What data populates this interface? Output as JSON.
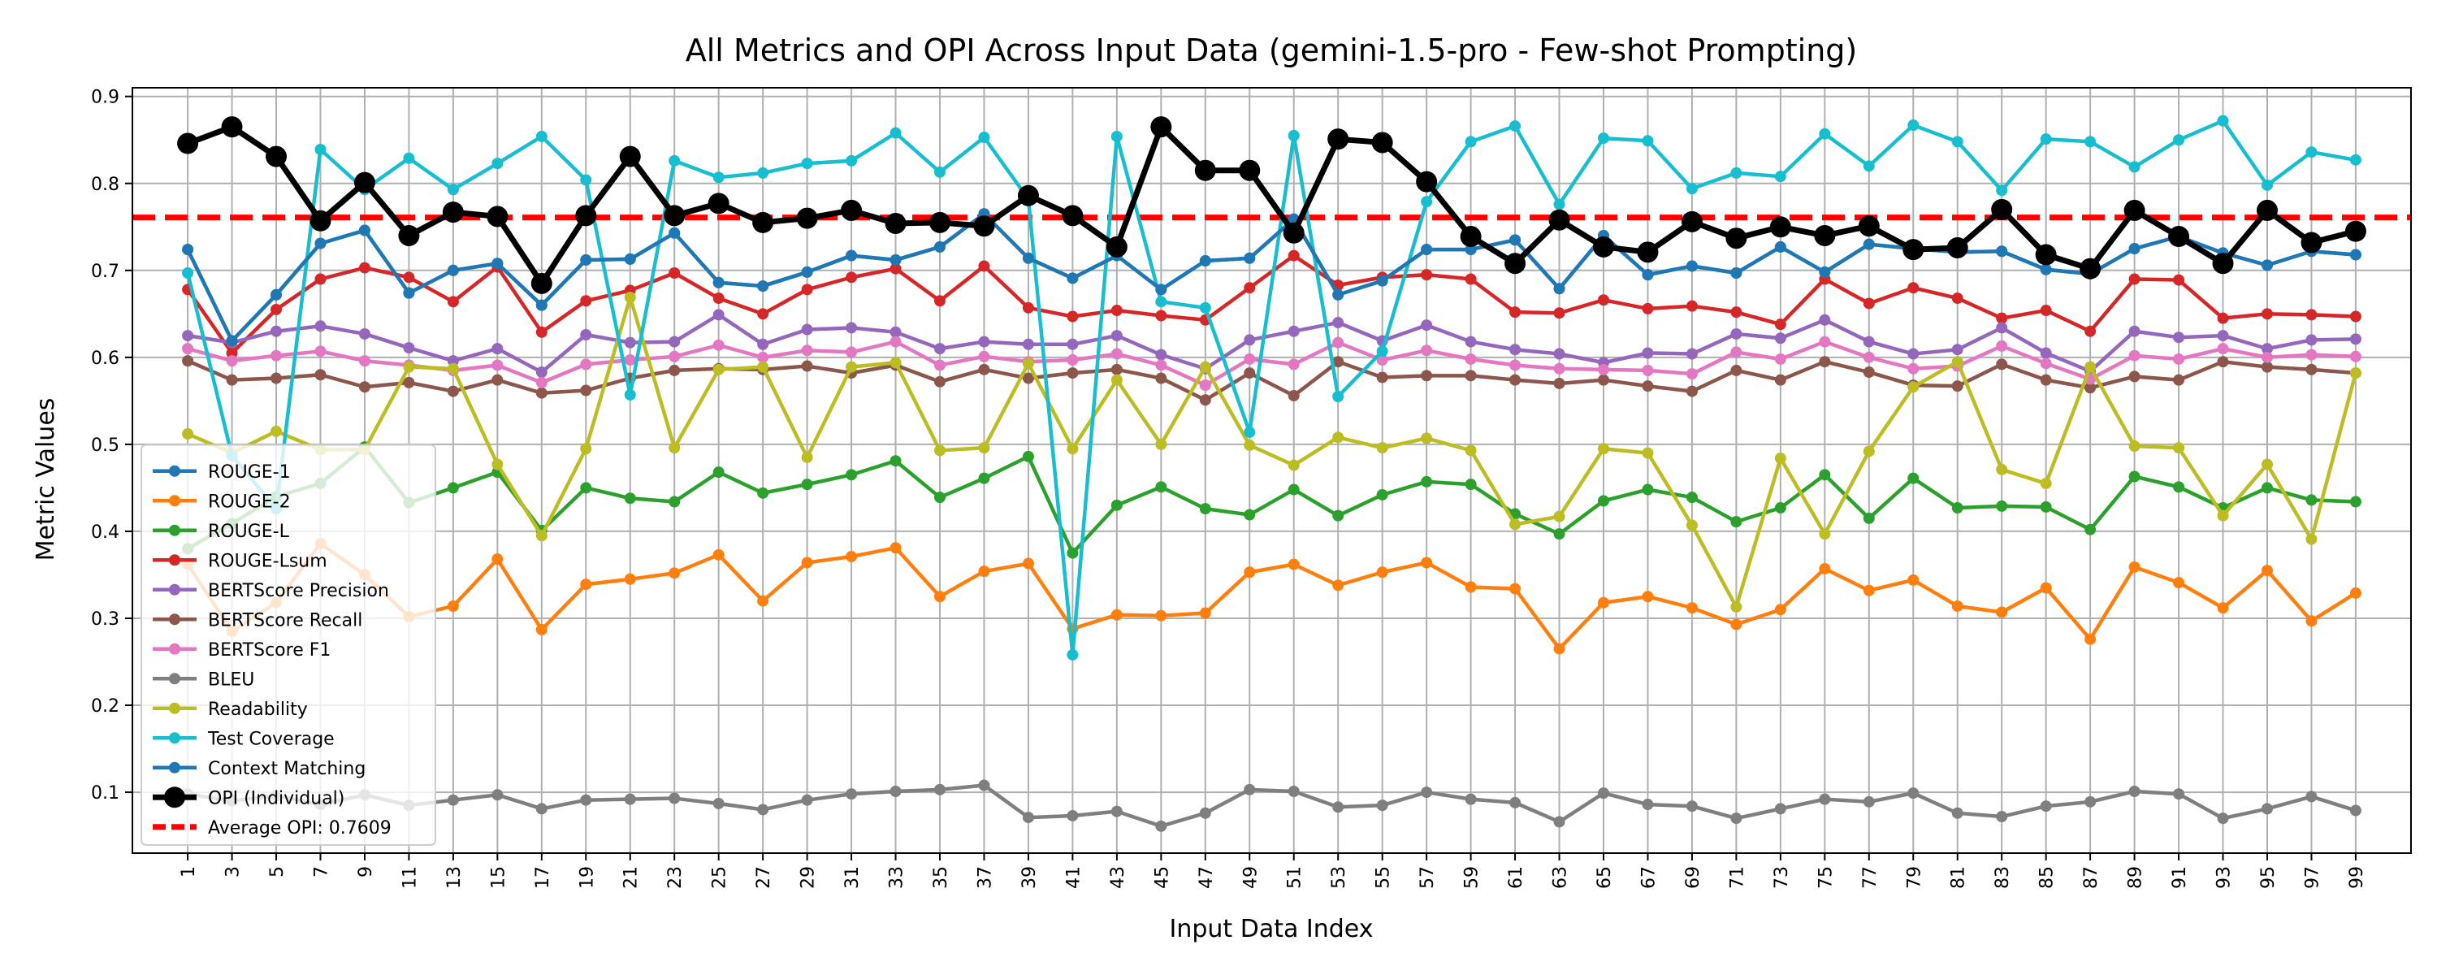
{
  "chart_data": {
    "type": "line",
    "title": "All Metrics and OPI Across Input Data (gemini-1.5-pro - Few-shot Prompting)",
    "xlabel": "Input Data Index",
    "ylabel": "Metric Values",
    "x": [
      1,
      3,
      5,
      7,
      9,
      11,
      13,
      15,
      17,
      19,
      21,
      23,
      25,
      27,
      29,
      31,
      33,
      35,
      37,
      39,
      41,
      43,
      45,
      47,
      49,
      51,
      53,
      55,
      57,
      59,
      61,
      63,
      65,
      67,
      69,
      71,
      73,
      75,
      77,
      79,
      81,
      83,
      85,
      87,
      89,
      91,
      93,
      95,
      97,
      99
    ],
    "x_ticks": [
      "1",
      "3",
      "5",
      "7",
      "9",
      "11",
      "13",
      "15",
      "17",
      "19",
      "21",
      "23",
      "25",
      "27",
      "29",
      "31",
      "33",
      "35",
      "37",
      "39",
      "41",
      "43",
      "45",
      "47",
      "49",
      "51",
      "53",
      "55",
      "57",
      "59",
      "61",
      "63",
      "65",
      "67",
      "69",
      "71",
      "73",
      "75",
      "77",
      "79",
      "81",
      "83",
      "85",
      "87",
      "89",
      "91",
      "93",
      "95",
      "97",
      "99"
    ],
    "xlim": [
      -1.5,
      101.5
    ],
    "ylim": [
      0.03,
      0.91
    ],
    "y_ticks": [
      "0.1",
      "0.2",
      "0.3",
      "0.4",
      "0.5",
      "0.6",
      "0.7",
      "0.8",
      "0.9"
    ],
    "y_tick_values": [
      0.1,
      0.2,
      0.3,
      0.4,
      0.5,
      0.6,
      0.7,
      0.8,
      0.9
    ],
    "grid": true,
    "legend_position": "lower-left",
    "series": [
      {
        "name": "ROUGE-1",
        "color": "#1f77b4",
        "values": [
          0.724,
          0.619,
          0.672,
          0.731,
          0.746,
          0.674,
          0.7,
          0.708,
          0.66,
          0.712,
          0.713,
          0.743,
          0.686,
          0.682,
          0.698,
          0.717,
          0.712,
          0.727,
          0.765,
          0.714,
          0.691,
          0.717,
          0.678,
          0.711,
          0.714,
          0.759,
          0.672,
          0.688,
          0.724,
          0.724,
          0.735,
          0.679,
          0.74,
          0.695,
          0.705,
          0.697,
          0.727,
          0.698,
          0.73,
          0.725,
          0.721,
          0.722,
          0.701,
          0.696,
          0.725,
          0.739,
          0.72,
          0.706,
          0.722,
          0.718
        ]
      },
      {
        "name": "ROUGE-2",
        "color": "#ff7f0e",
        "values": [
          0.362,
          0.285,
          0.318,
          0.386,
          0.35,
          0.302,
          0.314,
          0.368,
          0.287,
          0.339,
          0.345,
          0.352,
          0.373,
          0.32,
          0.364,
          0.371,
          0.381,
          0.325,
          0.354,
          0.363,
          0.288,
          0.304,
          0.303,
          0.306,
          0.353,
          0.362,
          0.338,
          0.353,
          0.364,
          0.336,
          0.334,
          0.265,
          0.318,
          0.325,
          0.312,
          0.293,
          0.31,
          0.357,
          0.332,
          0.344,
          0.314,
          0.307,
          0.335,
          0.276,
          0.359,
          0.341,
          0.312,
          0.355,
          0.297,
          0.329
        ]
      },
      {
        "name": "ROUGE-L",
        "color": "#2ca02c",
        "values": [
          0.38,
          0.409,
          0.44,
          0.455,
          0.497,
          0.433,
          0.45,
          0.468,
          0.401,
          0.45,
          0.438,
          0.434,
          0.468,
          0.444,
          0.454,
          0.465,
          0.481,
          0.439,
          0.461,
          0.486,
          0.375,
          0.43,
          0.451,
          0.426,
          0.419,
          0.448,
          0.418,
          0.442,
          0.457,
          0.454,
          0.42,
          0.397,
          0.435,
          0.448,
          0.439,
          0.411,
          0.427,
          0.465,
          0.415,
          0.461,
          0.427,
          0.429,
          0.428,
          0.402,
          0.463,
          0.451,
          0.427,
          0.45,
          0.436,
          0.434
        ]
      },
      {
        "name": "ROUGE-Lsum",
        "color": "#d62728",
        "values": [
          0.678,
          0.605,
          0.655,
          0.69,
          0.703,
          0.692,
          0.664,
          0.704,
          0.629,
          0.665,
          0.677,
          0.697,
          0.668,
          0.65,
          0.678,
          0.692,
          0.702,
          0.665,
          0.705,
          0.657,
          0.647,
          0.654,
          0.648,
          0.643,
          0.68,
          0.717,
          0.683,
          0.692,
          0.695,
          0.69,
          0.652,
          0.651,
          0.666,
          0.656,
          0.659,
          0.652,
          0.638,
          0.69,
          0.662,
          0.68,
          0.668,
          0.645,
          0.654,
          0.63,
          0.69,
          0.689,
          0.645,
          0.65,
          0.649,
          0.647
        ]
      },
      {
        "name": "BERTScore Precision",
        "color": "#9467bd",
        "values": [
          0.625,
          0.617,
          0.63,
          0.636,
          0.627,
          0.611,
          0.596,
          0.61,
          0.583,
          0.626,
          0.617,
          0.618,
          0.649,
          0.615,
          0.632,
          0.634,
          0.629,
          0.61,
          0.618,
          0.615,
          0.615,
          0.625,
          0.603,
          0.587,
          0.62,
          0.63,
          0.64,
          0.619,
          0.637,
          0.618,
          0.609,
          0.604,
          0.594,
          0.605,
          0.604,
          0.627,
          0.622,
          0.643,
          0.618,
          0.604,
          0.609,
          0.634,
          0.605,
          0.584,
          0.63,
          0.623,
          0.625,
          0.61,
          0.62,
          0.621
        ]
      },
      {
        "name": "BERTScore Recall",
        "color": "#8c564b",
        "values": [
          0.596,
          0.574,
          0.576,
          0.58,
          0.566,
          0.571,
          0.561,
          0.574,
          0.559,
          0.562,
          0.576,
          0.585,
          0.587,
          0.586,
          0.59,
          0.582,
          0.591,
          0.572,
          0.586,
          0.576,
          0.582,
          0.586,
          0.576,
          0.551,
          0.582,
          0.556,
          0.595,
          0.577,
          0.579,
          0.579,
          0.574,
          0.57,
          0.574,
          0.567,
          0.561,
          0.585,
          0.574,
          0.595,
          0.583,
          0.568,
          0.567,
          0.592,
          0.574,
          0.565,
          0.578,
          0.574,
          0.595,
          0.589,
          0.586,
          0.582
        ]
      },
      {
        "name": "BERTScore F1",
        "color": "#e377c2",
        "values": [
          0.61,
          0.596,
          0.602,
          0.607,
          0.596,
          0.591,
          0.585,
          0.591,
          0.571,
          0.592,
          0.597,
          0.601,
          0.614,
          0.6,
          0.608,
          0.606,
          0.618,
          0.591,
          0.601,
          0.595,
          0.597,
          0.604,
          0.591,
          0.568,
          0.598,
          0.592,
          0.617,
          0.597,
          0.608,
          0.598,
          0.591,
          0.587,
          0.586,
          0.585,
          0.581,
          0.606,
          0.598,
          0.618,
          0.6,
          0.587,
          0.59,
          0.613,
          0.593,
          0.575,
          0.602,
          0.598,
          0.61,
          0.6,
          0.603,
          0.601
        ]
      },
      {
        "name": "BLEU",
        "color": "#7f7f7f",
        "values": [
          0.098,
          0.09,
          0.096,
          0.086,
          0.097,
          0.085,
          0.091,
          0.097,
          0.081,
          0.091,
          0.092,
          0.093,
          0.087,
          0.08,
          0.091,
          0.098,
          0.101,
          0.103,
          0.108,
          0.071,
          0.073,
          0.078,
          0.061,
          0.076,
          0.103,
          0.101,
          0.083,
          0.085,
          0.1,
          0.092,
          0.088,
          0.066,
          0.099,
          0.086,
          0.084,
          0.07,
          0.081,
          0.092,
          0.089,
          0.099,
          0.076,
          0.072,
          0.084,
          0.089,
          0.101,
          0.098,
          0.07,
          0.081,
          0.095,
          0.079
        ]
      },
      {
        "name": "Readability",
        "color": "#bcbd22",
        "values": [
          0.512,
          0.49,
          0.515,
          0.494,
          0.494,
          0.589,
          0.587,
          0.477,
          0.395,
          0.495,
          0.669,
          0.496,
          0.586,
          0.589,
          0.485,
          0.589,
          0.594,
          0.493,
          0.496,
          0.593,
          0.495,
          0.574,
          0.5,
          0.589,
          0.499,
          0.476,
          0.508,
          0.496,
          0.507,
          0.493,
          0.408,
          0.417,
          0.495,
          0.49,
          0.407,
          0.313,
          0.484,
          0.397,
          0.492,
          0.566,
          0.595,
          0.471,
          0.455,
          0.589,
          0.498,
          0.496,
          0.418,
          0.477,
          0.391,
          0.582
        ]
      },
      {
        "name": "Test Coverage",
        "color": "#17becf",
        "values": [
          0.697,
          0.487,
          0.426,
          0.839,
          0.793,
          0.829,
          0.793,
          0.823,
          0.854,
          0.804,
          0.557,
          0.826,
          0.807,
          0.812,
          0.823,
          0.826,
          0.858,
          0.813,
          0.853,
          0.782,
          0.258,
          0.854,
          0.664,
          0.657,
          0.514,
          0.855,
          0.555,
          0.607,
          0.779,
          0.848,
          0.866,
          0.776,
          0.852,
          0.849,
          0.794,
          0.812,
          0.808,
          0.857,
          0.82,
          0.867,
          0.848,
          0.792,
          0.851,
          0.848,
          0.819,
          0.85,
          0.872,
          0.798,
          0.836,
          0.827
        ]
      },
      {
        "name": "Context Matching",
        "color": "#1f77b4",
        "values": [
          0.724,
          0.619,
          0.672,
          0.731,
          0.746,
          0.674,
          0.7,
          0.708,
          0.66,
          0.712,
          0.713,
          0.743,
          0.686,
          0.682,
          0.698,
          0.717,
          0.712,
          0.727,
          0.765,
          0.714,
          0.691,
          0.717,
          0.678,
          0.711,
          0.714,
          0.759,
          0.672,
          0.688,
          0.724,
          0.724,
          0.735,
          0.679,
          0.74,
          0.695,
          0.705,
          0.697,
          0.727,
          0.698,
          0.73,
          0.725,
          0.721,
          0.722,
          0.701,
          0.696,
          0.725,
          0.739,
          0.72,
          0.706,
          0.722,
          0.718
        ]
      },
      {
        "name": "OPI (Individual)",
        "color": "#000000",
        "bold": true,
        "values": [
          0.846,
          0.865,
          0.831,
          0.757,
          0.801,
          0.74,
          0.767,
          0.762,
          0.685,
          0.763,
          0.831,
          0.763,
          0.777,
          0.755,
          0.76,
          0.769,
          0.754,
          0.755,
          0.751,
          0.786,
          0.763,
          0.727,
          0.865,
          0.815,
          0.815,
          0.743,
          0.851,
          0.847,
          0.802,
          0.739,
          0.708,
          0.758,
          0.727,
          0.721,
          0.756,
          0.737,
          0.75,
          0.74,
          0.751,
          0.724,
          0.726,
          0.77,
          0.718,
          0.702,
          0.769,
          0.739,
          0.708,
          0.769,
          0.732,
          0.745
        ]
      }
    ],
    "average_line": {
      "name": "Average OPI: 0.7609",
      "value": 0.7609,
      "color": "#ff0000"
    }
  }
}
